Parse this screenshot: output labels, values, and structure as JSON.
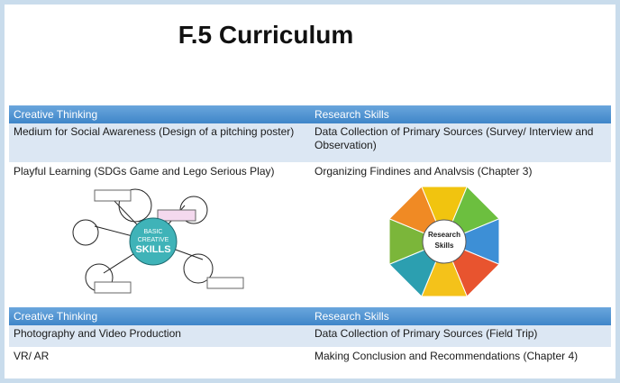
{
  "title": "F.5 Curriculum",
  "table1": {
    "header": [
      "Creative Thinking",
      "Research Skills"
    ],
    "rows": [
      [
        "Medium for Social Awareness (Design of a pitching poster)",
        "Data Collection of Primary Sources (Survey/ Interview and Observation)"
      ],
      [
        "Playful Learning (SDGs Game and Lego Serious Play)",
        "Organizing Findines and Analvsis (Chapter 3)"
      ]
    ]
  },
  "figures": {
    "creative": [
      "BASIC",
      "CREATIVE",
      "SKILLS"
    ],
    "research": [
      "Research",
      "Skills"
    ]
  },
  "table2": {
    "header": [
      "Creative Thinking",
      "Research Skills"
    ],
    "rows": [
      [
        "Photography and Video Production",
        "Data Collection of Primary Sources (Field Trip)"
      ],
      [
        "VR/ AR",
        "Making Conclusion and Recommendations (Chapter 4)"
      ]
    ]
  }
}
